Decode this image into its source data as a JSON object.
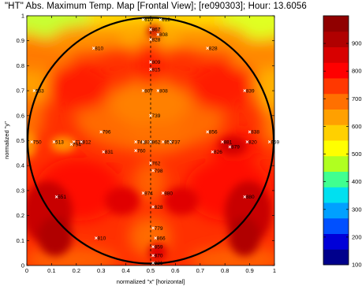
{
  "chart_data": {
    "type": "heatmap",
    "title": "\"HT\" Abs. Maximum Temp. Map [Frontal View];   [re090303];  Hour: 13.6056",
    "xlabel": "normalized \"x\" [horizontal]",
    "ylabel": "normalized \"y\"",
    "xlim": [
      0,
      1
    ],
    "ylim": [
      0,
      1
    ],
    "xticks": [
      "0",
      "0.1",
      "0.2",
      "0.3",
      "0.4",
      "0.5",
      "0.6",
      "0.7",
      "0.8",
      "0.9",
      "1"
    ],
    "yticks": [
      "0",
      "0.1",
      "0.2",
      "0.3",
      "0.4",
      "0.5",
      "0.6",
      "0.7",
      "0.8",
      "0.9",
      "1"
    ],
    "colorbar": {
      "min": 100,
      "max": 1000,
      "ticks": [
        "900",
        "800",
        "700",
        "600",
        "500",
        "400",
        "300",
        "200",
        "100"
      ],
      "tick_values": [
        900,
        800,
        700,
        600,
        500,
        400,
        300,
        200,
        100
      ],
      "colors": [
        "#00008c",
        "#0000d8",
        "#0050ff",
        "#00a0ff",
        "#00e0f0",
        "#40ff90",
        "#b0ff20",
        "#ffff00",
        "#ffd000",
        "#ffa000",
        "#ff7000",
        "#ff3800",
        "#ff0000",
        "#d80000",
        "#b00000",
        "#900000"
      ]
    },
    "thermocouples": [
      {
        "x": 0.47,
        "y": 0.985,
        "label": "610"
      },
      {
        "x": 0.54,
        "y": 0.985,
        "label": "612"
      },
      {
        "x": 0.5,
        "y": 0.945,
        "label": "867"
      },
      {
        "x": 0.53,
        "y": 0.925,
        "label": "808"
      },
      {
        "x": 0.5,
        "y": 0.905,
        "label": "828"
      },
      {
        "x": 0.27,
        "y": 0.87,
        "label": "810"
      },
      {
        "x": 0.73,
        "y": 0.87,
        "label": "828"
      },
      {
        "x": 0.5,
        "y": 0.815,
        "label": "809"
      },
      {
        "x": 0.5,
        "y": 0.785,
        "label": "815"
      },
      {
        "x": 0.03,
        "y": 0.7,
        "label": "533"
      },
      {
        "x": 0.47,
        "y": 0.7,
        "label": "807"
      },
      {
        "x": 0.53,
        "y": 0.7,
        "label": "808"
      },
      {
        "x": 0.88,
        "y": 0.7,
        "label": "839"
      },
      {
        "x": 0.5,
        "y": 0.6,
        "label": "739"
      },
      {
        "x": 0.3,
        "y": 0.535,
        "label": "796"
      },
      {
        "x": 0.73,
        "y": 0.535,
        "label": "856"
      },
      {
        "x": 0.9,
        "y": 0.535,
        "label": "838"
      },
      {
        "x": 0.02,
        "y": 0.495,
        "label": "750"
      },
      {
        "x": 0.11,
        "y": 0.495,
        "label": "513"
      },
      {
        "x": 0.19,
        "y": 0.495,
        "label": "772"
      },
      {
        "x": 0.22,
        "y": 0.495,
        "label": "812"
      },
      {
        "x": 0.44,
        "y": 0.495,
        "label": "741"
      },
      {
        "x": 0.47,
        "y": 0.495,
        "label": "838"
      },
      {
        "x": 0.5,
        "y": 0.495,
        "label": "862"
      },
      {
        "x": 0.55,
        "y": 0.495,
        "label": "855"
      },
      {
        "x": 0.58,
        "y": 0.495,
        "label": "737"
      },
      {
        "x": 0.79,
        "y": 0.495,
        "label": "881"
      },
      {
        "x": 0.89,
        "y": 0.495,
        "label": "820"
      },
      {
        "x": 0.98,
        "y": 0.495,
        "label": "859"
      },
      {
        "x": 0.18,
        "y": 0.485,
        "label": "794"
      },
      {
        "x": 0.82,
        "y": 0.475,
        "label": "879"
      },
      {
        "x": 0.44,
        "y": 0.46,
        "label": "760"
      },
      {
        "x": 0.31,
        "y": 0.455,
        "label": "831"
      },
      {
        "x": 0.75,
        "y": 0.455,
        "label": "826"
      },
      {
        "x": 0.5,
        "y": 0.41,
        "label": "762"
      },
      {
        "x": 0.51,
        "y": 0.38,
        "label": "798"
      },
      {
        "x": 0.47,
        "y": 0.29,
        "label": "874"
      },
      {
        "x": 0.55,
        "y": 0.29,
        "label": "880"
      },
      {
        "x": 0.12,
        "y": 0.275,
        "label": "551"
      },
      {
        "x": 0.88,
        "y": 0.275,
        "label": "880"
      },
      {
        "x": 0.51,
        "y": 0.235,
        "label": "828"
      },
      {
        "x": 0.51,
        "y": 0.15,
        "label": "779"
      },
      {
        "x": 0.28,
        "y": 0.11,
        "label": "810"
      },
      {
        "x": 0.52,
        "y": 0.11,
        "label": "866"
      },
      {
        "x": 0.51,
        "y": 0.075,
        "label": "859"
      },
      {
        "x": 0.51,
        "y": 0.04,
        "label": "870"
      },
      {
        "x": 0.51,
        "y": 0.01,
        "label": "821"
      }
    ]
  }
}
